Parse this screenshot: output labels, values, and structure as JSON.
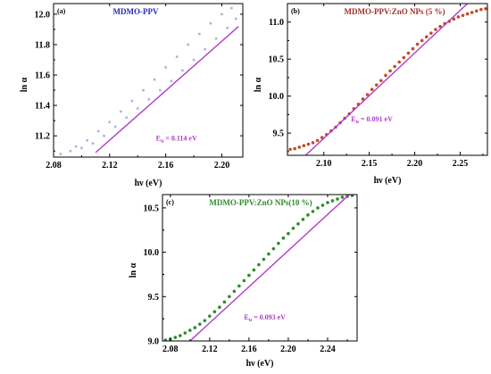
{
  "chart_data": [
    {
      "type": "scatter",
      "panel_label": "(a)",
      "title": "MDMO-PPV",
      "xlabel": "hν (eV)",
      "ylabel": "ln α",
      "xlim": [
        2.08,
        2.215
      ],
      "ylim": [
        11.06,
        12.07
      ],
      "xticks": [
        "2.08",
        "2.12",
        "2.16",
        "2.20"
      ],
      "yticks": [
        "11.2",
        "11.4",
        "11.6",
        "11.8",
        "12.0"
      ],
      "annotation": {
        "prefix": "E",
        "sub": "u",
        "text": " = 0.114 eV",
        "x": 2.153,
        "y": 11.17
      },
      "colors": {
        "title": "#2b2bb8",
        "marker": "#a9b6e0",
        "fit": "#b03bc8"
      },
      "series": [
        {
          "role": "data",
          "x": [
            2.085,
            2.092,
            2.1,
            2.108,
            2.116,
            2.124,
            2.132,
            2.14,
            2.148,
            2.156,
            2.164,
            2.172,
            2.18,
            2.188,
            2.196,
            2.204,
            2.21
          ],
          "y": [
            11.08,
            11.1,
            11.12,
            11.15,
            11.2,
            11.26,
            11.32,
            11.38,
            11.44,
            11.5,
            11.56,
            11.63,
            11.7,
            11.77,
            11.84,
            11.91,
            11.97
          ]
        },
        {
          "role": "data",
          "x": [
            2.096,
            2.104,
            2.112,
            2.12,
            2.128,
            2.136,
            2.144,
            2.152,
            2.16,
            2.168,
            2.176,
            2.184,
            2.192,
            2.2,
            2.207
          ],
          "y": [
            11.13,
            11.17,
            11.23,
            11.29,
            11.36,
            11.43,
            11.5,
            11.57,
            11.65,
            11.72,
            11.8,
            11.87,
            11.94,
            12.0,
            12.04
          ]
        },
        {
          "role": "fit",
          "x": [
            2.11,
            2.212
          ],
          "y": [
            11.09,
            11.92
          ]
        }
      ]
    },
    {
      "type": "scatter",
      "panel_label": "(b)",
      "title": "MDMO-PPV:ZnO NPs (5 %)",
      "xlabel": "hν (eV)",
      "ylabel": "ln α",
      "xlim": [
        2.06,
        2.28
      ],
      "ylim": [
        9.2,
        11.25
      ],
      "xticks": [
        "2.10",
        "2.15",
        "2.20",
        "2.25"
      ],
      "yticks": [
        "9.5",
        "10.0",
        "10.5",
        "11.0"
      ],
      "annotation": {
        "prefix": "E",
        "sub": "u",
        "text": " = 0.091 eV",
        "x": 2.13,
        "y": 9.66
      },
      "colors": {
        "title": "#a0302a",
        "marker": "#c44a2a",
        "fit": "#b03bc8"
      },
      "series": [
        {
          "role": "data",
          "x": [
            2.063,
            2.068,
            2.073,
            2.078,
            2.083,
            2.088,
            2.093,
            2.098,
            2.103,
            2.108,
            2.113,
            2.118,
            2.123,
            2.128,
            2.133,
            2.138,
            2.143,
            2.148,
            2.153,
            2.158,
            2.163,
            2.168,
            2.173,
            2.178,
            2.183,
            2.188,
            2.193,
            2.198,
            2.203,
            2.208,
            2.213,
            2.218,
            2.223,
            2.228,
            2.233,
            2.238,
            2.243,
            2.248,
            2.253,
            2.258,
            2.263,
            2.268,
            2.273,
            2.278
          ],
          "y": [
            9.28,
            9.29,
            9.31,
            9.33,
            9.35,
            9.37,
            9.4,
            9.44,
            9.48,
            9.53,
            9.58,
            9.64,
            9.7,
            9.76,
            9.83,
            9.89,
            9.96,
            10.02,
            10.09,
            10.15,
            10.21,
            10.28,
            10.34,
            10.4,
            10.46,
            10.52,
            10.58,
            10.64,
            10.7,
            10.75,
            10.8,
            10.85,
            10.9,
            10.94,
            10.98,
            11.01,
            11.04,
            11.07,
            11.09,
            11.11,
            11.13,
            11.15,
            11.17,
            11.18
          ]
        },
        {
          "role": "fit",
          "x": [
            2.08,
            2.258
          ],
          "y": [
            9.2,
            11.25
          ]
        }
      ]
    },
    {
      "type": "scatter",
      "panel_label": "(c)",
      "title": "MDMO-PPV:ZnO NPs(10 %)",
      "xlabel": "hν (eV)",
      "ylabel": "ln α",
      "xlim": [
        2.072,
        2.27
      ],
      "ylim": [
        9.0,
        10.65
      ],
      "xticks": [
        "2.08",
        "2.12",
        "2.16",
        "2.20",
        "2.24"
      ],
      "yticks": [
        "9.0",
        "9.5",
        "10.0",
        "10.5"
      ],
      "annotation": {
        "prefix": "E",
        "sub": "u",
        "text": " = 0.093 eV",
        "x": 2.155,
        "y": 9.24
      },
      "colors": {
        "title": "#2e8a2e",
        "marker": "#2e8a2e",
        "fit": "#b03bc8"
      },
      "series": [
        {
          "role": "data",
          "x": [
            2.075,
            2.08,
            2.085,
            2.09,
            2.095,
            2.1,
            2.105,
            2.11,
            2.115,
            2.12,
            2.125,
            2.13,
            2.135,
            2.14,
            2.145,
            2.15,
            2.155,
            2.16,
            2.165,
            2.17,
            2.175,
            2.18,
            2.185,
            2.19,
            2.195,
            2.2,
            2.205,
            2.21,
            2.215,
            2.22,
            2.225,
            2.23,
            2.235,
            2.24,
            2.245,
            2.25,
            2.255,
            2.26,
            2.265
          ],
          "y": [
            9.01,
            9.02,
            9.04,
            9.06,
            9.09,
            9.12,
            9.15,
            9.19,
            9.23,
            9.28,
            9.33,
            9.38,
            9.44,
            9.5,
            9.56,
            9.62,
            9.68,
            9.74,
            9.8,
            9.86,
            9.92,
            9.98,
            10.04,
            10.1,
            10.16,
            10.21,
            10.27,
            10.32,
            10.37,
            10.42,
            10.46,
            10.5,
            10.53,
            10.56,
            10.58,
            10.6,
            10.62,
            10.63,
            10.64
          ]
        },
        {
          "role": "fit",
          "x": [
            2.1,
            2.262
          ],
          "y": [
            9.0,
            10.65
          ]
        }
      ]
    }
  ]
}
